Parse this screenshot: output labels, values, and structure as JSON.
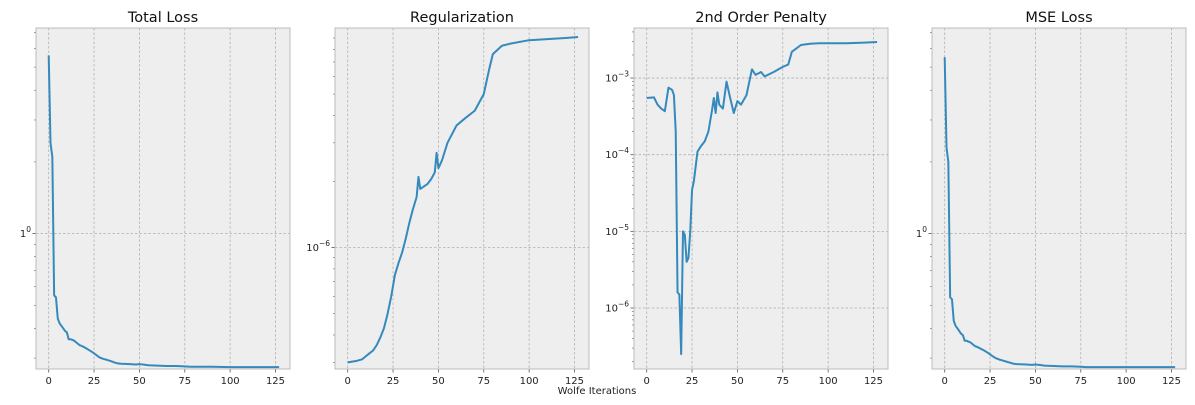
{
  "figure": {
    "xlabel": "Wolfe Iterations"
  },
  "colors": {
    "line": "#348abd",
    "panel": "#eeeeee",
    "grid": "#b0b0b0",
    "frame": "#bcbcbc"
  },
  "chart_data": [
    {
      "type": "line",
      "title": "Total Loss",
      "xlabel": "",
      "ylabel": "",
      "yscale": "log",
      "grid": true,
      "xlim": [
        -7,
        133
      ],
      "ylim": [
        0.27,
        7.3
      ],
      "xticks": [
        0,
        25,
        50,
        75,
        100,
        125
      ],
      "yticks": [
        {
          "value": 1,
          "label": "1",
          "exp": "0"
        }
      ],
      "x": [
        0,
        1,
        2,
        3,
        4,
        5,
        6,
        7,
        8,
        9,
        10,
        11,
        12,
        13,
        14,
        15,
        16,
        17,
        18,
        19,
        20,
        22,
        24,
        26,
        28,
        30,
        32,
        34,
        36,
        38,
        40,
        45,
        48,
        50,
        52,
        55,
        60,
        65,
        70,
        75,
        78,
        80,
        85,
        90,
        100,
        110,
        120,
        127
      ],
      "y": [
        5.6,
        2.4,
        2.1,
        0.55,
        0.54,
        0.44,
        0.42,
        0.41,
        0.4,
        0.39,
        0.385,
        0.36,
        0.36,
        0.358,
        0.355,
        0.35,
        0.345,
        0.34,
        0.338,
        0.335,
        0.332,
        0.325,
        0.318,
        0.31,
        0.302,
        0.298,
        0.295,
        0.292,
        0.288,
        0.285,
        0.284,
        0.283,
        0.282,
        0.283,
        0.282,
        0.28,
        0.279,
        0.278,
        0.278,
        0.277,
        0.276,
        0.276,
        0.276,
        0.276,
        0.275,
        0.275,
        0.275,
        0.275
      ]
    },
    {
      "type": "line",
      "title": "Regularization",
      "xlabel": "",
      "ylabel": "",
      "yscale": "log",
      "grid": true,
      "xlim": [
        -7,
        133
      ],
      "ylim": [
        2.8e-07,
        1e-05
      ],
      "xticks": [
        0,
        25,
        50,
        75,
        100,
        125
      ],
      "yticks": [
        {
          "value": 1e-06,
          "label": "10",
          "exp": "−6"
        }
      ],
      "x": [
        0,
        5,
        8,
        10,
        12,
        14,
        16,
        18,
        20,
        22,
        24,
        26,
        28,
        30,
        32,
        34,
        36,
        38,
        39,
        40,
        44,
        46,
        48,
        49,
        50,
        52,
        55,
        60,
        65,
        70,
        75,
        78,
        80,
        85,
        90,
        100,
        110,
        120,
        127
      ],
      "y": [
        3e-07,
        3.05e-07,
        3.1e-07,
        3.2e-07,
        3.3e-07,
        3.4e-07,
        3.6e-07,
        3.9e-07,
        4.3e-07,
        5e-07,
        6e-07,
        7.5e-07,
        8.5e-07,
        9.5e-07,
        1.1e-06,
        1.3e-06,
        1.5e-06,
        1.7e-06,
        2.1e-06,
        1.85e-06,
        1.95e-06,
        2.05e-06,
        2.2e-06,
        2.7e-06,
        2.3e-06,
        2.5e-06,
        3e-06,
        3.6e-06,
        3.9e-06,
        4.2e-06,
        5e-06,
        6.5e-06,
        7.6e-06,
        8.3e-06,
        8.5e-06,
        8.8e-06,
        8.9e-06,
        9e-06,
        9.1e-06
      ]
    },
    {
      "type": "line",
      "title": "2nd Order Penalty",
      "xlabel": "",
      "ylabel": "",
      "yscale": "log",
      "grid": true,
      "xlim": [
        -7,
        133
      ],
      "ylim": [
        1.6e-07,
        0.0045
      ],
      "xticks": [
        0,
        25,
        50,
        75,
        100,
        125
      ],
      "yticks": [
        {
          "value": 0.001,
          "label": "10",
          "exp": "−3"
        },
        {
          "value": 0.0001,
          "label": "10",
          "exp": "−4"
        },
        {
          "value": 1e-05,
          "label": "10",
          "exp": "−5"
        },
        {
          "value": 1e-06,
          "label": "10",
          "exp": "−6"
        }
      ],
      "x": [
        0,
        4,
        6,
        8,
        10,
        12,
        14,
        15,
        16,
        17,
        18,
        19,
        20,
        21,
        22,
        23,
        24,
        25,
        26,
        28,
        30,
        32,
        34,
        36,
        37,
        38,
        39,
        40,
        42,
        44,
        46,
        48,
        50,
        52,
        55,
        58,
        60,
        63,
        65,
        70,
        75,
        78,
        80,
        85,
        90,
        95,
        100,
        110,
        120,
        127
      ],
      "y": [
        0.00055,
        0.00056,
        0.00045,
        0.0004,
        0.00037,
        0.00075,
        0.0007,
        0.0006,
        0.0002,
        1.6e-06,
        1.5e-06,
        2.5e-07,
        1e-05,
        9e-06,
        4e-06,
        4.5e-06,
        1e-05,
        3.5e-05,
        4.5e-05,
        0.00011,
        0.00013,
        0.00015,
        0.0002,
        0.00038,
        0.00055,
        0.00035,
        0.00065,
        0.00045,
        0.0004,
        0.0009,
        0.00055,
        0.00035,
        0.0005,
        0.00045,
        0.0006,
        0.0013,
        0.0011,
        0.0012,
        0.00105,
        0.0012,
        0.0014,
        0.0015,
        0.0022,
        0.0027,
        0.0028,
        0.00285,
        0.00285,
        0.00285,
        0.0029,
        0.00295
      ]
    },
    {
      "type": "line",
      "title": "MSE Loss",
      "xlabel": "",
      "ylabel": "",
      "yscale": "log",
      "grid": true,
      "xlim": [
        -7,
        133
      ],
      "ylim": [
        0.27,
        7.3
      ],
      "xticks": [
        0,
        25,
        50,
        75,
        100,
        125
      ],
      "yticks": [
        {
          "value": 1,
          "label": "1",
          "exp": "0"
        }
      ],
      "x": [
        0,
        1,
        2,
        3,
        4,
        5,
        6,
        7,
        8,
        9,
        10,
        11,
        12,
        13,
        14,
        15,
        16,
        17,
        18,
        19,
        20,
        22,
        24,
        26,
        28,
        30,
        32,
        34,
        36,
        38,
        40,
        45,
        48,
        50,
        52,
        55,
        60,
        65,
        70,
        75,
        78,
        80,
        85,
        90,
        100,
        110,
        120,
        127
      ],
      "y": [
        5.5,
        2.3,
        2.0,
        0.54,
        0.53,
        0.43,
        0.41,
        0.4,
        0.39,
        0.38,
        0.375,
        0.355,
        0.355,
        0.352,
        0.35,
        0.345,
        0.34,
        0.336,
        0.334,
        0.331,
        0.328,
        0.322,
        0.315,
        0.307,
        0.3,
        0.296,
        0.293,
        0.29,
        0.287,
        0.284,
        0.283,
        0.282,
        0.281,
        0.282,
        0.281,
        0.279,
        0.278,
        0.277,
        0.277,
        0.276,
        0.275,
        0.275,
        0.275,
        0.275,
        0.275,
        0.275,
        0.275,
        0.275
      ]
    }
  ]
}
